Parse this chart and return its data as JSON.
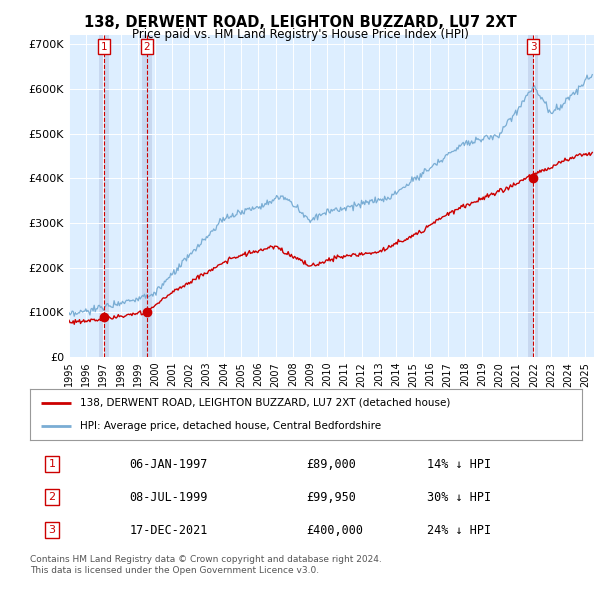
{
  "title": "138, DERWENT ROAD, LEIGHTON BUZZARD, LU7 2XT",
  "subtitle": "Price paid vs. HM Land Registry's House Price Index (HPI)",
  "legend_label_red": "138, DERWENT ROAD, LEIGHTON BUZZARD, LU7 2XT (detached house)",
  "legend_label_blue": "HPI: Average price, detached house, Central Bedfordshire",
  "sales": [
    {
      "label": "1",
      "date_str": "06-JAN-1997",
      "year": 1997.02,
      "price": 89000,
      "pct": "14% ↓ HPI"
    },
    {
      "label": "2",
      "date_str": "08-JUL-1999",
      "year": 1999.52,
      "price": 99950,
      "pct": "30% ↓ HPI"
    },
    {
      "label": "3",
      "date_str": "17-DEC-2021",
      "year": 2021.96,
      "price": 400000,
      "pct": "24% ↓ HPI"
    }
  ],
  "footer_line1": "Contains HM Land Registry data © Crown copyright and database right 2024.",
  "footer_line2": "This data is licensed under the Open Government Licence v3.0.",
  "ylim": [
    0,
    720000
  ],
  "xlim_start": 1995.0,
  "xlim_end": 2025.5,
  "yticks": [
    0,
    100000,
    200000,
    300000,
    400000,
    500000,
    600000,
    700000
  ],
  "ytick_labels": [
    "£0",
    "£100K",
    "£200K",
    "£300K",
    "£400K",
    "£500K",
    "£600K",
    "£700K"
  ],
  "xticks": [
    1995,
    1996,
    1997,
    1998,
    1999,
    2000,
    2001,
    2002,
    2003,
    2004,
    2005,
    2006,
    2007,
    2008,
    2009,
    2010,
    2011,
    2012,
    2013,
    2014,
    2015,
    2016,
    2017,
    2018,
    2019,
    2020,
    2021,
    2022,
    2023,
    2024,
    2025
  ],
  "red_color": "#cc0000",
  "blue_color": "#7aadd4",
  "bg_color": "#ddeeff",
  "shade_color": "#c8d8f0",
  "vline_color": "#cc0000",
  "box_color": "#cc0000",
  "grid_color": "#ffffff"
}
